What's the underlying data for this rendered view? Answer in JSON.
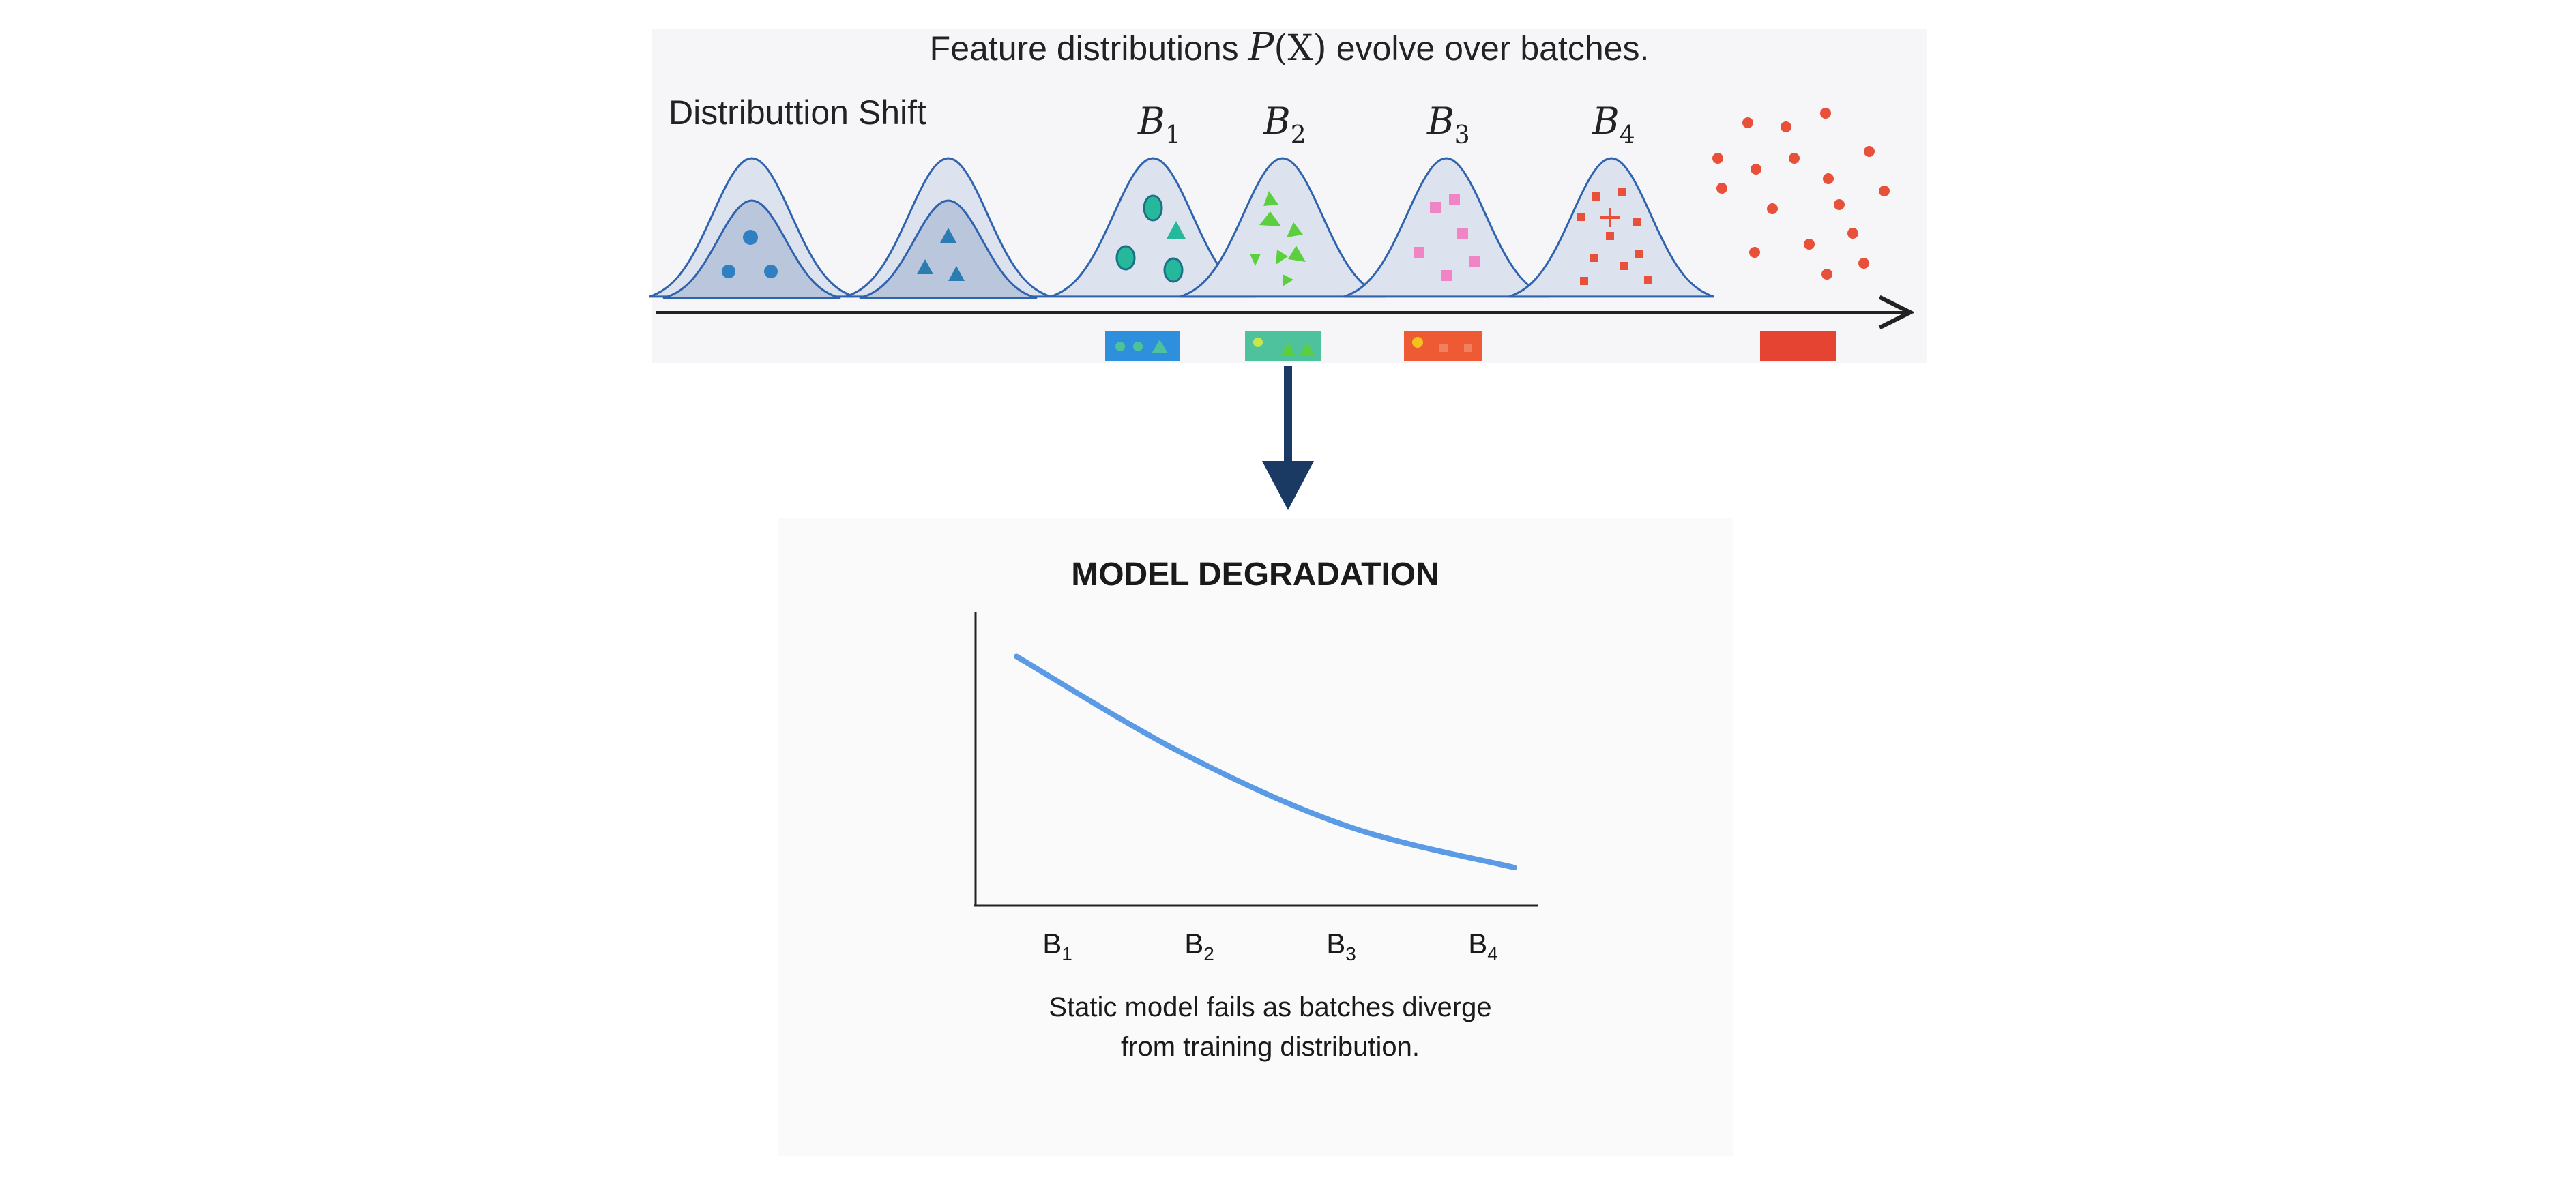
{
  "top": {
    "title_prefix": "Feature distributions ",
    "title_math_p": "P",
    "title_math_x": "(X)",
    "title_suffix": " evolve over batches.",
    "shift_label": "Distributtion Shift",
    "batches": [
      {
        "letter": "B",
        "sub": "1"
      },
      {
        "letter": "B",
        "sub": "2"
      },
      {
        "letter": "B",
        "sub": "3"
      },
      {
        "letter": "B",
        "sub": "4"
      }
    ]
  },
  "colors": {
    "curve_stroke": "#2f63ad",
    "curve_fill_outer": "#dde3ee",
    "curve_fill_inner": "#b9c6dc",
    "blue_marker": "#2f7fc2",
    "teal_marker": "#1ea7a0",
    "green_marker": "#5ccf3e",
    "pink_marker": "#f084c4",
    "red_marker": "#e8503a",
    "bar_blue": "#2e8fdd",
    "bar_teal": "#4dc29c",
    "bar_orange": "#ee5a33",
    "bar_red": "#e54432",
    "arrow": "#1a3a63",
    "line": "#5b9be6"
  },
  "bottom": {
    "title": "MODEL DEGRADATION",
    "caption_line1": "Static model fails as batches diverge",
    "caption_line2": "from training distribution."
  },
  "chart_data": {
    "type": "line",
    "title": "MODEL DEGRADATION",
    "categories": [
      "B1",
      "B2",
      "B3",
      "B4"
    ],
    "x_labels": [
      {
        "letter": "B",
        "sub": "1"
      },
      {
        "letter": "B",
        "sub": "2"
      },
      {
        "letter": "B",
        "sub": "3"
      },
      {
        "letter": "B",
        "sub": "4"
      }
    ],
    "series": [
      {
        "values": [
          0.85,
          0.52,
          0.27,
          0.13
        ]
      }
    ],
    "ylim": [
      0,
      1
    ],
    "grid": false,
    "legend": "none"
  }
}
